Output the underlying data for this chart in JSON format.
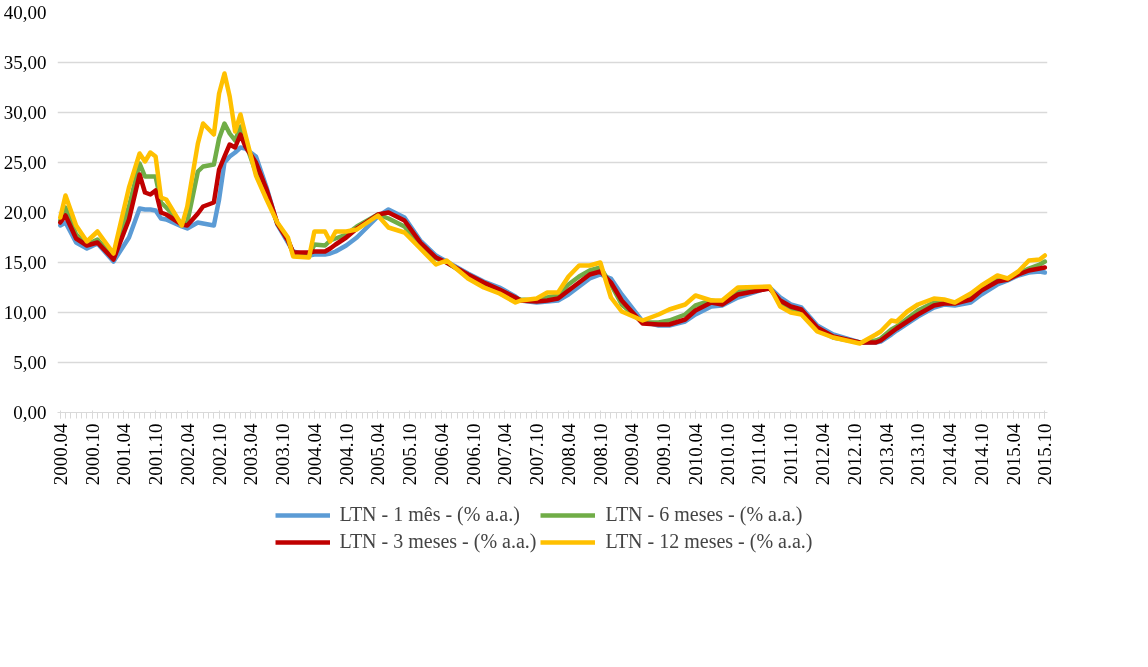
{
  "chart_data": {
    "type": "line",
    "x": [
      "2000-04",
      "2000-05",
      "2000-07",
      "2000-09",
      "2000-11",
      "2001-02",
      "2001-05",
      "2001-07",
      "2001-08",
      "2001-09",
      "2001-10",
      "2001-11",
      "2001-12",
      "2002-03",
      "2002-04",
      "2002-06",
      "2002-07",
      "2002-09",
      "2002-10",
      "2002-11",
      "2002-12",
      "2003-01",
      "2003-02",
      "2003-03",
      "2003-05",
      "2003-07",
      "2003-09",
      "2003-11",
      "2003-12",
      "2004-03",
      "2004-04",
      "2004-06",
      "2004-07",
      "2004-08",
      "2004-10",
      "2004-12",
      "2005-04",
      "2005-06",
      "2005-09",
      "2005-12",
      "2006-03",
      "2006-05",
      "2006-09",
      "2006-12",
      "2007-03",
      "2007-06",
      "2007-07",
      "2007-10",
      "2007-12",
      "2008-02",
      "2008-04",
      "2008-06",
      "2008-08",
      "2008-10",
      "2008-12",
      "2009-02",
      "2009-06",
      "2009-09",
      "2009-11",
      "2010-02",
      "2010-04",
      "2010-07",
      "2010-09",
      "2010-12",
      "2011-06",
      "2011-08",
      "2011-10",
      "2011-12",
      "2012-03",
      "2012-06",
      "2012-11",
      "2013-02",
      "2013-03",
      "2013-05",
      "2013-06",
      "2013-08",
      "2013-10",
      "2014-01",
      "2014-03",
      "2014-05",
      "2014-08",
      "2014-10",
      "2015-01",
      "2015-03",
      "2015-05",
      "2015-07",
      "2015-09",
      "2015-10"
    ],
    "series": [
      {
        "name": "LTN - 1 mês - (% a.a.)",
        "color": "#5b9bd5",
        "values": [
          18.7,
          19.0,
          17.0,
          16.4,
          16.9,
          15.1,
          17.5,
          20.4,
          20.3,
          20.3,
          20.2,
          19.4,
          19.3,
          18.6,
          18.4,
          19.0,
          18.9,
          18.7,
          21.3,
          25.0,
          25.6,
          26.0,
          26.5,
          26.4,
          25.6,
          22.5,
          18.8,
          17.0,
          16.1,
          15.7,
          15.8,
          15.8,
          15.9,
          16.1,
          16.7,
          17.5,
          19.6,
          20.3,
          19.5,
          17.2,
          15.7,
          15.1,
          13.9,
          13.1,
          12.5,
          11.6,
          11.2,
          11.0,
          11.1,
          11.2,
          11.8,
          12.6,
          13.4,
          13.8,
          13.4,
          11.8,
          9.1,
          8.7,
          8.7,
          9.1,
          9.8,
          10.6,
          10.7,
          11.5,
          12.5,
          11.5,
          10.8,
          10.5,
          8.7,
          7.8,
          7.0,
          7.0,
          7.1,
          7.8,
          8.2,
          8.9,
          9.6,
          10.5,
          10.8,
          10.7,
          11.0,
          11.8,
          12.8,
          13.2,
          13.7,
          14.0,
          14.1,
          14.0
        ]
      },
      {
        "name": "LTN - 6 meses - (% a.a.)",
        "color": "#70ad47",
        "values": [
          19.2,
          20.5,
          17.8,
          16.8,
          17.3,
          15.5,
          20.6,
          24.9,
          23.6,
          23.6,
          23.6,
          21.0,
          20.5,
          18.9,
          19.0,
          24.1,
          24.6,
          24.8,
          27.4,
          28.9,
          27.9,
          27.2,
          28.6,
          27.0,
          24.0,
          21.8,
          18.9,
          17.3,
          15.9,
          15.6,
          16.8,
          16.7,
          17.2,
          17.4,
          17.8,
          18.6,
          19.8,
          19.4,
          18.6,
          16.8,
          15.4,
          15.0,
          13.7,
          12.9,
          12.2,
          11.4,
          11.3,
          11.2,
          11.5,
          11.7,
          12.8,
          13.6,
          14.2,
          14.5,
          12.8,
          10.8,
          9.0,
          9.0,
          9.2,
          9.8,
          10.7,
          11.2,
          11.0,
          12.2,
          12.5,
          11.0,
          10.3,
          10.0,
          8.3,
          7.5,
          7.0,
          7.2,
          7.4,
          8.3,
          8.6,
          9.4,
          10.2,
          11.0,
          11.0,
          10.9,
          11.6,
          12.4,
          13.3,
          13.3,
          13.9,
          14.4,
          14.8,
          15.1
        ]
      },
      {
        "name": "LTN - 3 meses - (% a.a.)",
        "color": "#c00000",
        "values": [
          19.0,
          19.7,
          17.4,
          16.7,
          17.0,
          15.3,
          19.3,
          23.8,
          22.0,
          21.8,
          22.2,
          20.0,
          19.8,
          18.8,
          18.7,
          19.9,
          20.6,
          21.0,
          24.3,
          25.6,
          26.8,
          26.5,
          27.8,
          26.6,
          25.0,
          22.3,
          18.9,
          17.2,
          16.0,
          16.0,
          16.1,
          16.1,
          16.4,
          16.8,
          17.5,
          18.4,
          19.8,
          20.0,
          19.2,
          17.0,
          15.5,
          15.0,
          13.8,
          13.0,
          12.3,
          11.5,
          11.2,
          11.1,
          11.2,
          11.4,
          12.2,
          13.0,
          13.8,
          14.1,
          13.0,
          11.2,
          8.9,
          8.8,
          8.8,
          9.3,
          10.2,
          11.0,
          10.8,
          11.8,
          12.4,
          11.2,
          10.6,
          10.3,
          8.5,
          7.6,
          7.0,
          7.0,
          7.2,
          8.0,
          8.4,
          9.1,
          9.8,
          10.7,
          10.9,
          10.9,
          11.3,
          12.2,
          13.1,
          13.3,
          13.8,
          14.2,
          14.4,
          14.5
        ]
      },
      {
        "name": "LTN - 12 meses - (% a.a.)",
        "color": "#ffc000",
        "values": [
          19.5,
          21.7,
          18.7,
          17.1,
          18.1,
          15.9,
          22.5,
          25.9,
          25.1,
          26.0,
          25.6,
          21.5,
          21.3,
          18.7,
          20.6,
          26.9,
          28.9,
          27.8,
          31.9,
          33.9,
          31.6,
          28.1,
          29.8,
          27.8,
          23.7,
          21.3,
          19.0,
          17.5,
          15.6,
          15.5,
          18.1,
          18.1,
          17.1,
          18.1,
          18.1,
          18.3,
          19.7,
          18.5,
          18.0,
          16.4,
          14.8,
          15.2,
          13.4,
          12.5,
          11.9,
          11.0,
          11.2,
          11.4,
          12.0,
          12.0,
          13.6,
          14.7,
          14.7,
          15.0,
          11.5,
          10.1,
          9.2,
          9.8,
          10.3,
          10.8,
          11.7,
          11.2,
          11.2,
          12.5,
          12.6,
          10.6,
          10.0,
          9.8,
          8.1,
          7.5,
          6.9,
          7.8,
          8.1,
          9.2,
          9.1,
          10.1,
          10.8,
          11.4,
          11.3,
          11.0,
          11.9,
          12.7,
          13.7,
          13.4,
          14.1,
          15.2,
          15.3,
          15.7
        ]
      }
    ],
    "xlim": [
      "2000-03-16",
      "2015-10-16"
    ],
    "xticks": [
      {
        "value": "2000-04",
        "label": "2000.04"
      },
      {
        "value": "2000-10",
        "label": "2000.10"
      },
      {
        "value": "2001-04",
        "label": "2001.04"
      },
      {
        "value": "2001-10",
        "label": "2001.10"
      },
      {
        "value": "2002-04",
        "label": "2002.04"
      },
      {
        "value": "2002-10",
        "label": "2002.10"
      },
      {
        "value": "2003-04",
        "label": "2003.04"
      },
      {
        "value": "2003-10",
        "label": "2003.10"
      },
      {
        "value": "2004-04",
        "label": "2004.04"
      },
      {
        "value": "2004-10",
        "label": "2004.10"
      },
      {
        "value": "2005-04",
        "label": "2005.04"
      },
      {
        "value": "2005-10",
        "label": "2005.10"
      },
      {
        "value": "2006-04",
        "label": "2006.04"
      },
      {
        "value": "2006-10",
        "label": "2006.10"
      },
      {
        "value": "2007-04",
        "label": "2007.04"
      },
      {
        "value": "2007-10",
        "label": "2007.10"
      },
      {
        "value": "2008-04",
        "label": "2008.04"
      },
      {
        "value": "2008-10",
        "label": "2008.10"
      },
      {
        "value": "2009-04",
        "label": "2009.04"
      },
      {
        "value": "2009-10",
        "label": "2009.10"
      },
      {
        "value": "2010-04",
        "label": "2010.04"
      },
      {
        "value": "2010-10",
        "label": "2010.10"
      },
      {
        "value": "2011-04",
        "label": "2011.04"
      },
      {
        "value": "2011-10",
        "label": "2011.10"
      },
      {
        "value": "2012-04",
        "label": "2012.04"
      },
      {
        "value": "2012-10",
        "label": "2012.10"
      },
      {
        "value": "2013-04",
        "label": "2013.04"
      },
      {
        "value": "2013-10",
        "label": "2013.10"
      },
      {
        "value": "2014-04",
        "label": "2014.04"
      },
      {
        "value": "2014-10",
        "label": "2014.10"
      },
      {
        "value": "2015-04",
        "label": "2015.04"
      },
      {
        "value": "2015-10",
        "label": "2015.10"
      }
    ],
    "ylim": [
      0,
      40
    ],
    "yticks": [
      {
        "value": 0,
        "label": "0,00"
      },
      {
        "value": 5,
        "label": "5,00"
      },
      {
        "value": 10,
        "label": "10,00"
      },
      {
        "value": 15,
        "label": "15,00"
      },
      {
        "value": 20,
        "label": "20,00"
      },
      {
        "value": 25,
        "label": "25,00"
      },
      {
        "value": 30,
        "label": "30,00"
      },
      {
        "value": 35,
        "label": "35,00"
      },
      {
        "value": 40,
        "label": "40,00"
      }
    ],
    "grid": "y",
    "legend": "bottom",
    "marker": "none",
    "line_style": "solid"
  }
}
